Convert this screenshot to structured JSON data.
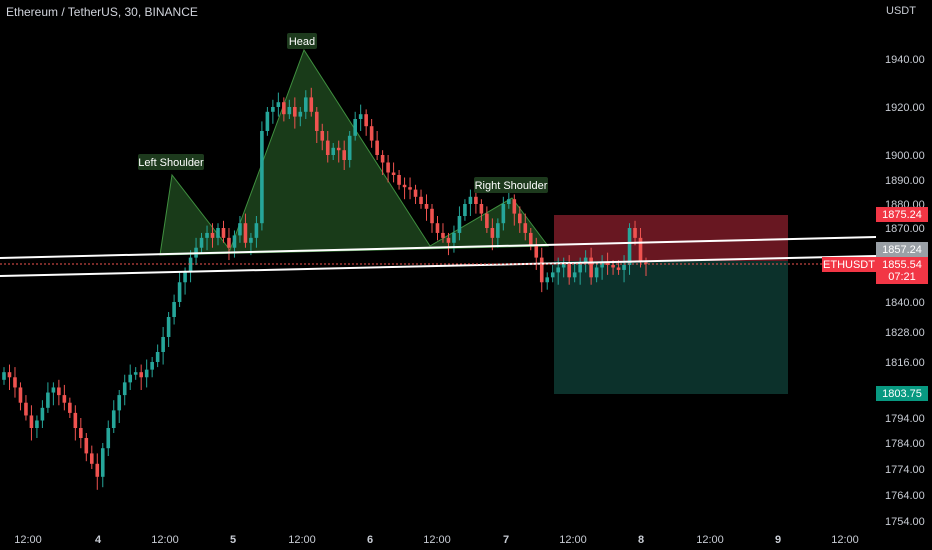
{
  "header": {
    "title": "Ethereum / TetherUS, 30, BINANCE",
    "currency": "USDT"
  },
  "chart_data": {
    "type": "candlestick",
    "yticks": [
      1754,
      1764,
      1774,
      1784,
      1794,
      1816,
      1828,
      1840,
      1870,
      1880,
      1890,
      1900,
      1920,
      1940
    ],
    "ylim": [
      1752,
      1970
    ],
    "xticks": [
      "12:00",
      "4",
      "12:00",
      "5",
      "12:00",
      "6",
      "12:00",
      "7",
      "12:00",
      "8",
      "12:00",
      "9",
      "12:00"
    ],
    "pattern_labels": [
      "Left Shoulder",
      "Head",
      "Right Shoulder"
    ],
    "price_badges": {
      "stop": "1875.24",
      "entry": "1857.24",
      "symbol": "ETHUSDT",
      "last": "1855.54",
      "countdown": "07:21",
      "target": "1803.75"
    },
    "colors": {
      "up": "#26a69a",
      "down": "#ef5350",
      "stop_zone": "#8b1e2a",
      "target_zone": "#0f3d35"
    },
    "candles_close": [
      1812,
      1810,
      1806,
      1800,
      1795,
      1790,
      1793,
      1798,
      1804,
      1806,
      1803,
      1800,
      1796,
      1790,
      1786,
      1780,
      1776,
      1771,
      1782,
      1790,
      1797,
      1803,
      1808,
      1811,
      1812,
      1810,
      1813,
      1816,
      1820,
      1826,
      1834,
      1840,
      1848,
      1852,
      1858,
      1862,
      1866,
      1868,
      1866,
      1870,
      1866,
      1862,
      1867,
      1872,
      1864,
      1866,
      1872,
      1910,
      1918,
      1920,
      1922,
      1917,
      1920,
      1916,
      1918,
      1924,
      1918,
      1910,
      1906,
      1900,
      1903,
      1902,
      1898,
      1908,
      1915,
      1917,
      1912,
      1906,
      1900,
      1897,
      1893,
      1892,
      1888,
      1887,
      1886,
      1883,
      1880,
      1878,
      1872,
      1868,
      1866,
      1864,
      1868,
      1875,
      1880,
      1883,
      1880,
      1876,
      1870,
      1866,
      1872,
      1880,
      1882,
      1876,
      1872,
      1868,
      1863,
      1858,
      1848,
      1850,
      1852,
      1854,
      1856,
      1850,
      1852,
      1856,
      1858,
      1850,
      1854,
      1856,
      1855,
      1854,
      1853,
      1855,
      1870,
      1866,
      1856,
      1855.54
    ],
    "candles_open": [
      1809,
      1812,
      1810,
      1806,
      1800,
      1795,
      1790,
      1793,
      1798,
      1804,
      1806,
      1803,
      1800,
      1796,
      1790,
      1786,
      1780,
      1776,
      1771,
      1782,
      1790,
      1797,
      1803,
      1808,
      1811,
      1812,
      1810,
      1813,
      1816,
      1820,
      1826,
      1834,
      1840,
      1848,
      1852,
      1858,
      1862,
      1866,
      1868,
      1866,
      1870,
      1866,
      1862,
      1867,
      1872,
      1864,
      1866,
      1872,
      1910,
      1918,
      1920,
      1922,
      1917,
      1920,
      1916,
      1918,
      1924,
      1918,
      1910,
      1906,
      1900,
      1903,
      1902,
      1898,
      1908,
      1915,
      1917,
      1912,
      1906,
      1900,
      1897,
      1893,
      1892,
      1888,
      1887,
      1886,
      1883,
      1880,
      1878,
      1872,
      1868,
      1866,
      1864,
      1868,
      1875,
      1880,
      1883,
      1880,
      1876,
      1870,
      1866,
      1872,
      1880,
      1882,
      1876,
      1872,
      1868,
      1863,
      1858,
      1848,
      1850,
      1852,
      1854,
      1856,
      1850,
      1852,
      1856,
      1858,
      1850,
      1854,
      1856,
      1855,
      1854,
      1853,
      1855,
      1870,
      1866,
      1856
    ]
  }
}
